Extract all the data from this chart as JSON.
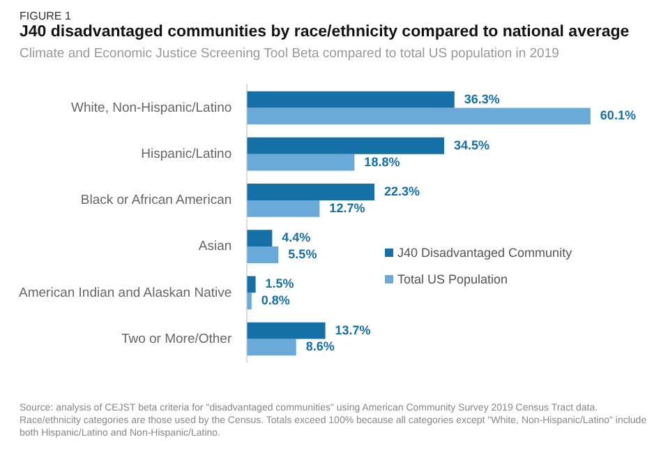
{
  "chart_data": {
    "type": "bar",
    "orientation": "horizontal",
    "title": "J40 disadvantaged communities by race/ethnicity compared to national average",
    "subtitle": "Climate and Economic Justice Screening Tool Beta compared to total US population in 2019",
    "categories": [
      "White, Non-Hispanic/Latino",
      "Hispanic/Latino",
      "Black or African American",
      "Asian",
      "American Indian and Alaskan Native",
      "Two or More/Other"
    ],
    "series": [
      {
        "name": "J40 Disadvantaged Community",
        "color": "#1670a8",
        "values": [
          36.3,
          34.5,
          22.3,
          4.4,
          1.5,
          13.7
        ],
        "value_labels": [
          "36.3%",
          "34.5%",
          "22.3%",
          "4.4%",
          "1.5%",
          "13.7%"
        ]
      },
      {
        "name": "Total US Population",
        "color": "#6aaad8",
        "values": [
          60.1,
          18.8,
          12.7,
          5.5,
          0.8,
          8.6
        ],
        "value_labels": [
          "60.1%",
          "18.8%",
          "12.7%",
          "5.5%",
          "0.8%",
          "8.6%"
        ]
      }
    ],
    "legend": "right",
    "grid": false,
    "annotations": [
      "FIGURE 1",
      "Source: analysis of CEJST beta criteria for \"disadvantaged communities\" using American Community Survey 2019 Census Tract data. Race/ethnicity categories are those used by the Census. Totals exceed 100% because all categories except \"White, Non-Hispanic/Latino\" include both Hispanic/Latino and Non-Hispanic/Latino."
    ]
  }
}
